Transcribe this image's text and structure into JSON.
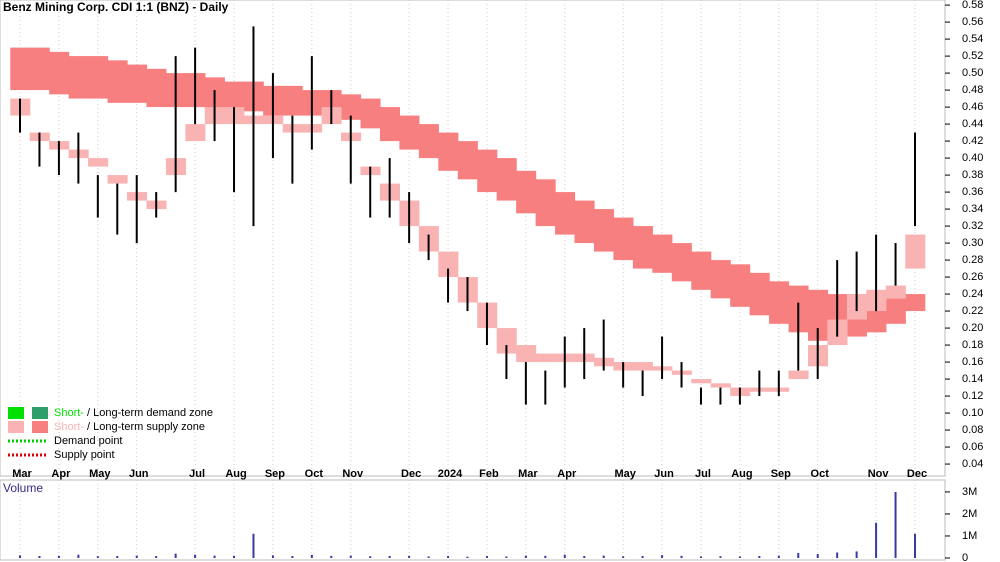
{
  "chart_data": [
    {
      "type": "ohlc",
      "title": "Benz Mining Corp. CDI 1:1 (BNZ) - Daily",
      "categories": [
        "Mar",
        null,
        "Apr",
        null,
        "May",
        null,
        "Jun",
        null,
        null,
        "Jul",
        null,
        "Aug",
        null,
        "Sep",
        null,
        "Oct",
        null,
        "Nov",
        null,
        null,
        "Dec",
        null,
        "2024",
        null,
        "Feb",
        null,
        "Mar",
        null,
        "Apr",
        null,
        null,
        "May",
        null,
        "Jun",
        null,
        "Jul",
        null,
        "Aug",
        null,
        "Sep",
        null,
        "Oct",
        null,
        null,
        "Nov",
        null,
        "Dec"
      ],
      "series": [
        {
          "name": "High",
          "color": "#000000",
          "values": [
            0.47,
            0.43,
            0.42,
            0.43,
            0.38,
            0.37,
            0.38,
            0.36,
            0.52,
            0.53,
            0.48,
            0.46,
            0.555,
            0.5,
            0.45,
            0.52,
            0.48,
            0.45,
            0.39,
            0.4,
            0.36,
            0.31,
            0.27,
            0.26,
            0.23,
            0.18,
            0.16,
            0.15,
            0.19,
            0.2,
            0.21,
            0.16,
            0.15,
            0.19,
            0.16,
            0.13,
            0.13,
            0.13,
            0.15,
            0.15,
            0.23,
            0.2,
            0.28,
            0.29,
            0.31,
            0.3,
            0.43
          ]
        },
        {
          "name": "Low",
          "color": "#000000",
          "values": [
            0.43,
            0.39,
            0.38,
            0.37,
            0.33,
            0.31,
            0.3,
            0.33,
            0.36,
            0.44,
            0.42,
            0.36,
            0.32,
            0.4,
            0.37,
            0.41,
            0.44,
            0.37,
            0.33,
            0.33,
            0.3,
            0.28,
            0.23,
            0.22,
            0.18,
            0.14,
            0.11,
            0.11,
            0.13,
            0.14,
            0.15,
            0.13,
            0.12,
            0.14,
            0.13,
            0.11,
            0.11,
            0.11,
            0.12,
            0.12,
            0.15,
            0.14,
            0.19,
            0.22,
            0.22,
            0.25,
            0.32
          ]
        },
        {
          "name": "Long-term upper",
          "color": "#f77f7f",
          "values": [
            0.53,
            0.53,
            0.525,
            0.52,
            0.52,
            0.515,
            0.51,
            0.505,
            0.5,
            0.5,
            0.495,
            0.49,
            0.49,
            0.485,
            0.485,
            0.48,
            0.48,
            0.475,
            0.47,
            0.46,
            0.45,
            0.44,
            0.43,
            0.42,
            0.41,
            0.4,
            0.385,
            0.375,
            0.36,
            0.35,
            0.34,
            0.33,
            0.32,
            0.31,
            0.3,
            0.29,
            0.28,
            0.275,
            0.265,
            0.255,
            0.25,
            0.245,
            0.24,
            0.24,
            0.235,
            0.235,
            0.24
          ]
        },
        {
          "name": "Long-term lower",
          "color": "#f77f7f",
          "values": [
            0.48,
            0.48,
            0.475,
            0.47,
            0.47,
            0.465,
            0.465,
            0.46,
            0.46,
            0.46,
            0.455,
            0.455,
            0.455,
            0.45,
            0.45,
            0.45,
            0.45,
            0.445,
            0.435,
            0.42,
            0.41,
            0.4,
            0.385,
            0.375,
            0.36,
            0.35,
            0.335,
            0.32,
            0.31,
            0.3,
            0.29,
            0.28,
            0.27,
            0.265,
            0.255,
            0.245,
            0.235,
            0.225,
            0.215,
            0.205,
            0.195,
            0.185,
            0.185,
            0.19,
            0.195,
            0.205,
            0.22
          ]
        },
        {
          "name": "Short-term upper",
          "color": "#f9b3b3",
          "values": [
            0.47,
            0.43,
            0.42,
            0.41,
            0.4,
            0.38,
            0.36,
            0.35,
            0.4,
            0.44,
            0.46,
            0.46,
            0.45,
            0.45,
            0.44,
            0.44,
            0.46,
            0.43,
            0.39,
            0.37,
            0.35,
            0.32,
            0.29,
            0.26,
            0.23,
            0.2,
            0.18,
            0.17,
            0.17,
            0.17,
            0.165,
            0.16,
            0.16,
            0.155,
            0.15,
            0.14,
            0.135,
            0.13,
            0.13,
            0.13,
            0.15,
            0.18,
            0.21,
            0.24,
            0.245,
            0.25,
            0.31
          ]
        },
        {
          "name": "Short-term lower",
          "color": "#f9b3b3",
          "values": [
            0.45,
            0.42,
            0.41,
            0.4,
            0.39,
            0.37,
            0.35,
            0.34,
            0.38,
            0.42,
            0.44,
            0.44,
            0.44,
            0.44,
            0.43,
            0.43,
            0.44,
            0.42,
            0.38,
            0.35,
            0.32,
            0.29,
            0.26,
            0.23,
            0.2,
            0.17,
            0.16,
            0.16,
            0.16,
            0.16,
            0.155,
            0.15,
            0.15,
            0.15,
            0.145,
            0.135,
            0.13,
            0.12,
            0.125,
            0.125,
            0.14,
            0.155,
            0.18,
            0.21,
            0.22,
            0.235,
            0.27
          ]
        }
      ],
      "ylim": [
        0.033,
        0.586
      ],
      "yticks": [
        0.04,
        0.06,
        0.08,
        {
          "value": 0.1,
          "label": "0.10"
        },
        0.12,
        0.14,
        0.16,
        0.18,
        {
          "value": 0.2,
          "label": "0.20"
        },
        0.22,
        0.24,
        0.26,
        0.28,
        {
          "value": 0.3,
          "label": "0.30"
        },
        0.32,
        0.34,
        0.36,
        0.38,
        {
          "value": 0.4,
          "label": "0.40"
        },
        0.42,
        0.44,
        0.46,
        0.48,
        {
          "value": 0.5,
          "label": "0.50"
        },
        0.52,
        0.54,
        0.56,
        0.58
      ],
      "legend": [
        {
          "parts": [
            "Short-",
            " / ",
            "Long-term demand zone"
          ],
          "colors": [
            "#00e000",
            "#2e9e6a"
          ]
        },
        {
          "parts": [
            "Short-",
            " / ",
            "Long-term supply zone"
          ],
          "colors": [
            "#f9b3b3",
            "#f77f7f"
          ]
        },
        {
          "parts": [
            "Demand point"
          ],
          "colors": [
            "#00cc00"
          ]
        },
        {
          "parts": [
            "Supply point"
          ],
          "colors": [
            "#dd0000"
          ]
        }
      ]
    },
    {
      "type": "bar",
      "title": "Volume",
      "color": "#3a3aa0",
      "values": [
        120000,
        90000,
        100000,
        150000,
        80000,
        90000,
        110000,
        90000,
        200000,
        150000,
        110000,
        100000,
        1100000,
        120000,
        90000,
        140000,
        100000,
        110000,
        80000,
        90000,
        100000,
        70000,
        90000,
        60000,
        90000,
        70000,
        110000,
        100000,
        150000,
        90000,
        110000,
        80000,
        90000,
        130000,
        100000,
        70000,
        80000,
        70000,
        90000,
        110000,
        230000,
        180000,
        250000,
        300000,
        1600000,
        3000000,
        1100000
      ],
      "ylim": [
        0,
        3450000
      ],
      "yticks": [
        0,
        {
          "value": 1000000,
          "label": "1M"
        },
        {
          "value": 2000000,
          "label": "2M"
        },
        {
          "value": 3000000,
          "label": "3M"
        }
      ]
    }
  ]
}
